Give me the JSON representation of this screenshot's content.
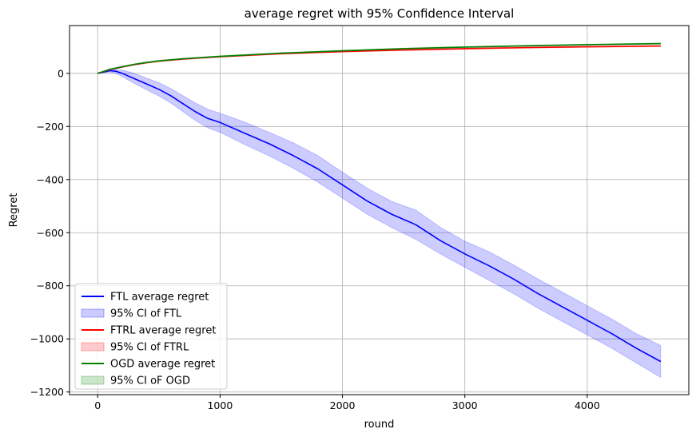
{
  "chart_data": {
    "type": "line",
    "title": "average regret with 95% Confidence Interval",
    "xlabel": "round",
    "ylabel": "Regret",
    "xlim": [
      -230,
      4830
    ],
    "ylim": [
      -1210,
      180
    ],
    "xticks": [
      0,
      1000,
      2000,
      3000,
      4000
    ],
    "yticks": [
      0,
      -200,
      -400,
      -600,
      -800,
      -1000,
      -1200
    ],
    "grid": true,
    "legend_position": "lower-left",
    "series": [
      {
        "name": "FTL average regret",
        "color": "#0000ff",
        "ci_label": "95% CI of FTL",
        "ci_color": "#0000ff",
        "x": [
          0,
          100,
          150,
          200,
          300,
          400,
          500,
          600,
          700,
          800,
          900,
          1000,
          1200,
          1400,
          1600,
          1800,
          2000,
          2200,
          2400,
          2600,
          2800,
          3000,
          3200,
          3400,
          3600,
          3800,
          4000,
          4200,
          4400,
          4600
        ],
        "y": [
          0,
          10,
          8,
          0,
          -20,
          -40,
          -60,
          -85,
          -115,
          -145,
          -170,
          -185,
          -225,
          -265,
          -310,
          -360,
          -420,
          -480,
          -530,
          -570,
          -630,
          -680,
          -725,
          -775,
          -830,
          -880,
          -930,
          -980,
          -1035,
          -1085
        ],
        "ci_lower": [
          0,
          5,
          0,
          -12,
          -38,
          -62,
          -85,
          -112,
          -145,
          -178,
          -205,
          -222,
          -268,
          -310,
          -358,
          -410,
          -470,
          -530,
          -580,
          -625,
          -680,
          -730,
          -780,
          -830,
          -885,
          -935,
          -985,
          -1035,
          -1090,
          -1145
        ],
        "ci_upper": [
          0,
          15,
          14,
          12,
          0,
          -18,
          -35,
          -58,
          -85,
          -112,
          -135,
          -150,
          -183,
          -222,
          -262,
          -310,
          -372,
          -432,
          -482,
          -515,
          -580,
          -632,
          -672,
          -722,
          -775,
          -825,
          -875,
          -925,
          -980,
          -1025
        ]
      },
      {
        "name": "FTRL average regret",
        "color": "#ff0000",
        "ci_label": "95% CI of FTRL",
        "ci_color": "#ff0000",
        "x": [
          0,
          100,
          200,
          300,
          400,
          500,
          700,
          1000,
          1500,
          2000,
          2500,
          3000,
          3500,
          4000,
          4600
        ],
        "y": [
          0,
          14,
          24,
          33,
          40,
          46,
          54,
          63,
          74,
          82,
          88,
          93,
          97,
          100,
          103
        ],
        "ci_lower": [
          0,
          12,
          22,
          31,
          38,
          44,
          52,
          61,
          72,
          80,
          86,
          91,
          95,
          98,
          101
        ],
        "ci_upper": [
          0,
          16,
          26,
          35,
          42,
          48,
          56,
          65,
          76,
          84,
          90,
          95,
          99,
          102,
          105
        ]
      },
      {
        "name": "OGD average regret",
        "color": "#008000",
        "ci_label": "95% CI oF OGD",
        "ci_color": "#008000",
        "x": [
          0,
          100,
          200,
          300,
          400,
          500,
          700,
          1000,
          1500,
          2000,
          2500,
          3000,
          3500,
          4000,
          4600
        ],
        "y": [
          0,
          15,
          25,
          34,
          41,
          47,
          55,
          64,
          76,
          85,
          93,
          99,
          104,
          108,
          112
        ],
        "ci_lower": [
          0,
          13,
          23,
          32,
          39,
          45,
          53,
          62,
          74,
          83,
          91,
          97,
          102,
          106,
          110
        ],
        "ci_upper": [
          0,
          17,
          27,
          36,
          43,
          49,
          57,
          66,
          78,
          87,
          95,
          101,
          106,
          110,
          114
        ]
      }
    ]
  }
}
